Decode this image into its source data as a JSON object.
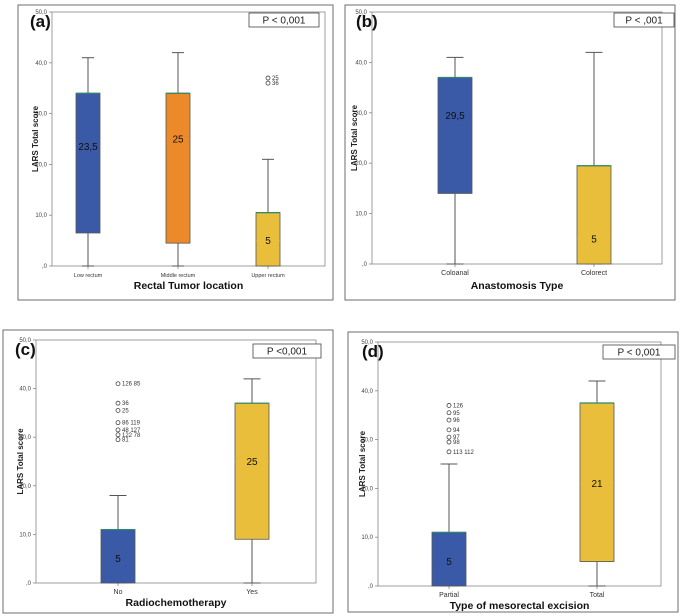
{
  "chart_data": [
    {
      "id": "a",
      "type": "box",
      "panel_label": "(a)",
      "p_value": "P < 0,001",
      "xlabel": "Rectal Tumor location",
      "ylabel": "LARS Total score",
      "ylim": [
        0,
        50
      ],
      "yticks": [
        0,
        10,
        20,
        30,
        40,
        50
      ],
      "ytick_labels": [
        ",0",
        "10,0",
        "20,0",
        "30,0",
        "40,0",
        "50,0"
      ],
      "categories": [
        "Low rectum",
        "Middle rectum",
        "Upper rectum"
      ],
      "series": [
        {
          "name": "Low rectum",
          "color": "#3a5aa8",
          "min": 0,
          "q1": 6.5,
          "median": 23.5,
          "q3": 34,
          "max": 41,
          "median_label": "23,5",
          "outliers": []
        },
        {
          "name": "Middle rectum",
          "color": "#ec8a2a",
          "min": 0,
          "q1": 4.5,
          "median": 25,
          "q3": 34,
          "max": 42,
          "median_label": "25",
          "outliers": []
        },
        {
          "name": "Upper rectum",
          "color": "#e8be3a",
          "min": 0,
          "q1": 0,
          "median": 5,
          "q3": 10.5,
          "max": 21,
          "median_label": "5",
          "outliers": [
            {
              "value": 37,
              "label": "25"
            },
            {
              "value": 36,
              "label": "36"
            }
          ]
        }
      ]
    },
    {
      "id": "b",
      "type": "box",
      "panel_label": "(b)",
      "p_value": "P < ,001",
      "xlabel": "Anastomosis Type",
      "ylabel": "LARS Total score",
      "ylim": [
        0,
        50
      ],
      "yticks": [
        0,
        10,
        20,
        30,
        40,
        50
      ],
      "ytick_labels": [
        ",0",
        "10,0",
        "20,0",
        "30,0",
        "40,0",
        "50,0"
      ],
      "categories": [
        "Coloanal",
        "Colorect"
      ],
      "series": [
        {
          "name": "Coloanal",
          "color": "#3a5aa8",
          "min": 0,
          "q1": 14,
          "median": 29.5,
          "q3": 37,
          "max": 41,
          "median_label": "29,5",
          "outliers": []
        },
        {
          "name": "Colorect",
          "color": "#e8be3a",
          "min": 0,
          "q1": 0,
          "median": 5,
          "q3": 19.5,
          "max": 42,
          "median_label": "5",
          "outliers": []
        }
      ]
    },
    {
      "id": "c",
      "type": "box",
      "panel_label": "(c)",
      "p_value": "P <0,001",
      "xlabel": "Radiochemotherapy",
      "ylabel": "LARS Total score",
      "ylim": [
        0,
        50
      ],
      "yticks": [
        0,
        10,
        20,
        30,
        40,
        50
      ],
      "ytick_labels": [
        ",0",
        "10,0",
        "20,0",
        "30,0",
        "40,0",
        "50,0"
      ],
      "categories": [
        "No",
        "Yes"
      ],
      "series": [
        {
          "name": "No",
          "color": "#3a5aa8",
          "min": 0,
          "q1": 0,
          "median": 5,
          "q3": 11,
          "max": 18,
          "median_label": "5",
          "outliers": [
            {
              "value": 41,
              "label": "126  85"
            },
            {
              "value": 37,
              "label": "36"
            },
            {
              "value": 35.5,
              "label": "25"
            },
            {
              "value": 33,
              "label": "86    119"
            },
            {
              "value": 31.5,
              "label": "48  127"
            },
            {
              "value": 30.5,
              "label": "122      78"
            },
            {
              "value": 29.5,
              "label": "81"
            }
          ]
        },
        {
          "name": "Yes",
          "color": "#e8be3a",
          "min": 0,
          "q1": 9,
          "median": 25,
          "q3": 37,
          "max": 42,
          "median_label": "25",
          "outliers": []
        }
      ]
    },
    {
      "id": "d",
      "type": "box",
      "panel_label": "(d)",
      "p_value": "P < 0,001",
      "xlabel": "Type of mesorectal excision",
      "ylabel": "LARS Total score",
      "ylim": [
        0,
        50
      ],
      "yticks": [
        0,
        10,
        20,
        30,
        40,
        50
      ],
      "ytick_labels": [
        ",0",
        "10,0",
        "20,0",
        "30,0",
        "40,0",
        "50,0"
      ],
      "categories": [
        "Partial",
        "Total"
      ],
      "series": [
        {
          "name": "Partial",
          "color": "#3a5aa8",
          "min": 0,
          "q1": 0,
          "median": 5,
          "q3": 11,
          "max": 25,
          "median_label": "5",
          "outliers": [
            {
              "value": 37,
              "label": "126"
            },
            {
              "value": 35.5,
              "label": "95"
            },
            {
              "value": 34,
              "label": "96"
            },
            {
              "value": 32,
              "label": "94"
            },
            {
              "value": 30.5,
              "label": "97"
            },
            {
              "value": 29.5,
              "label": "98"
            },
            {
              "value": 27.5,
              "label": "113    112"
            }
          ]
        },
        {
          "name": "Total",
          "color": "#e8be3a",
          "min": 0,
          "q1": 5,
          "median": 21,
          "q3": 37.5,
          "max": 42,
          "median_label": "21",
          "outliers": []
        }
      ]
    }
  ]
}
